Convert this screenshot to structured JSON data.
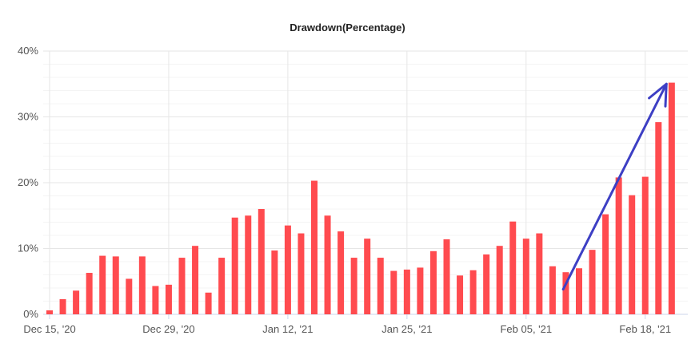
{
  "chart_data": {
    "type": "bar",
    "title": "Drawdown(Percentage)",
    "xlabel": "",
    "ylabel": "",
    "y_unit": "%",
    "ylim": [
      0,
      40
    ],
    "yticks": [
      0,
      10,
      20,
      30,
      40
    ],
    "ytick_labels": [
      "0%",
      "10%",
      "20%",
      "30%",
      "40%"
    ],
    "xtick_labels": [
      "Dec 15, '20",
      "Dec 29, '20",
      "Jan 12, '21",
      "Jan 25, '21",
      "Feb 05, '21",
      "Feb 18, '21"
    ],
    "xtick_bar_index": [
      0,
      9,
      18,
      27,
      36,
      45
    ],
    "grid": true,
    "bar_color": "#ff4b4f",
    "values": [
      0.6,
      2.3,
      3.6,
      6.3,
      8.9,
      8.8,
      5.4,
      8.8,
      4.3,
      4.5,
      8.6,
      10.4,
      3.3,
      8.6,
      14.7,
      15.0,
      16.0,
      9.7,
      13.5,
      12.3,
      20.3,
      15.0,
      12.6,
      8.6,
      11.5,
      8.6,
      6.6,
      6.8,
      7.1,
      9.6,
      11.4,
      5.9,
      6.7,
      9.1,
      10.4,
      14.1,
      11.5,
      12.3,
      7.3,
      6.4,
      7.0,
      9.8,
      15.2,
      20.8,
      18.1,
      20.9,
      29.2,
      35.2
    ],
    "annotation": {
      "type": "arrow",
      "color": "#3d3fc4",
      "from": {
        "bar_index": 38.8,
        "value": 3.8
      },
      "to": {
        "bar_index": 46.6,
        "value": 35.0
      }
    }
  }
}
